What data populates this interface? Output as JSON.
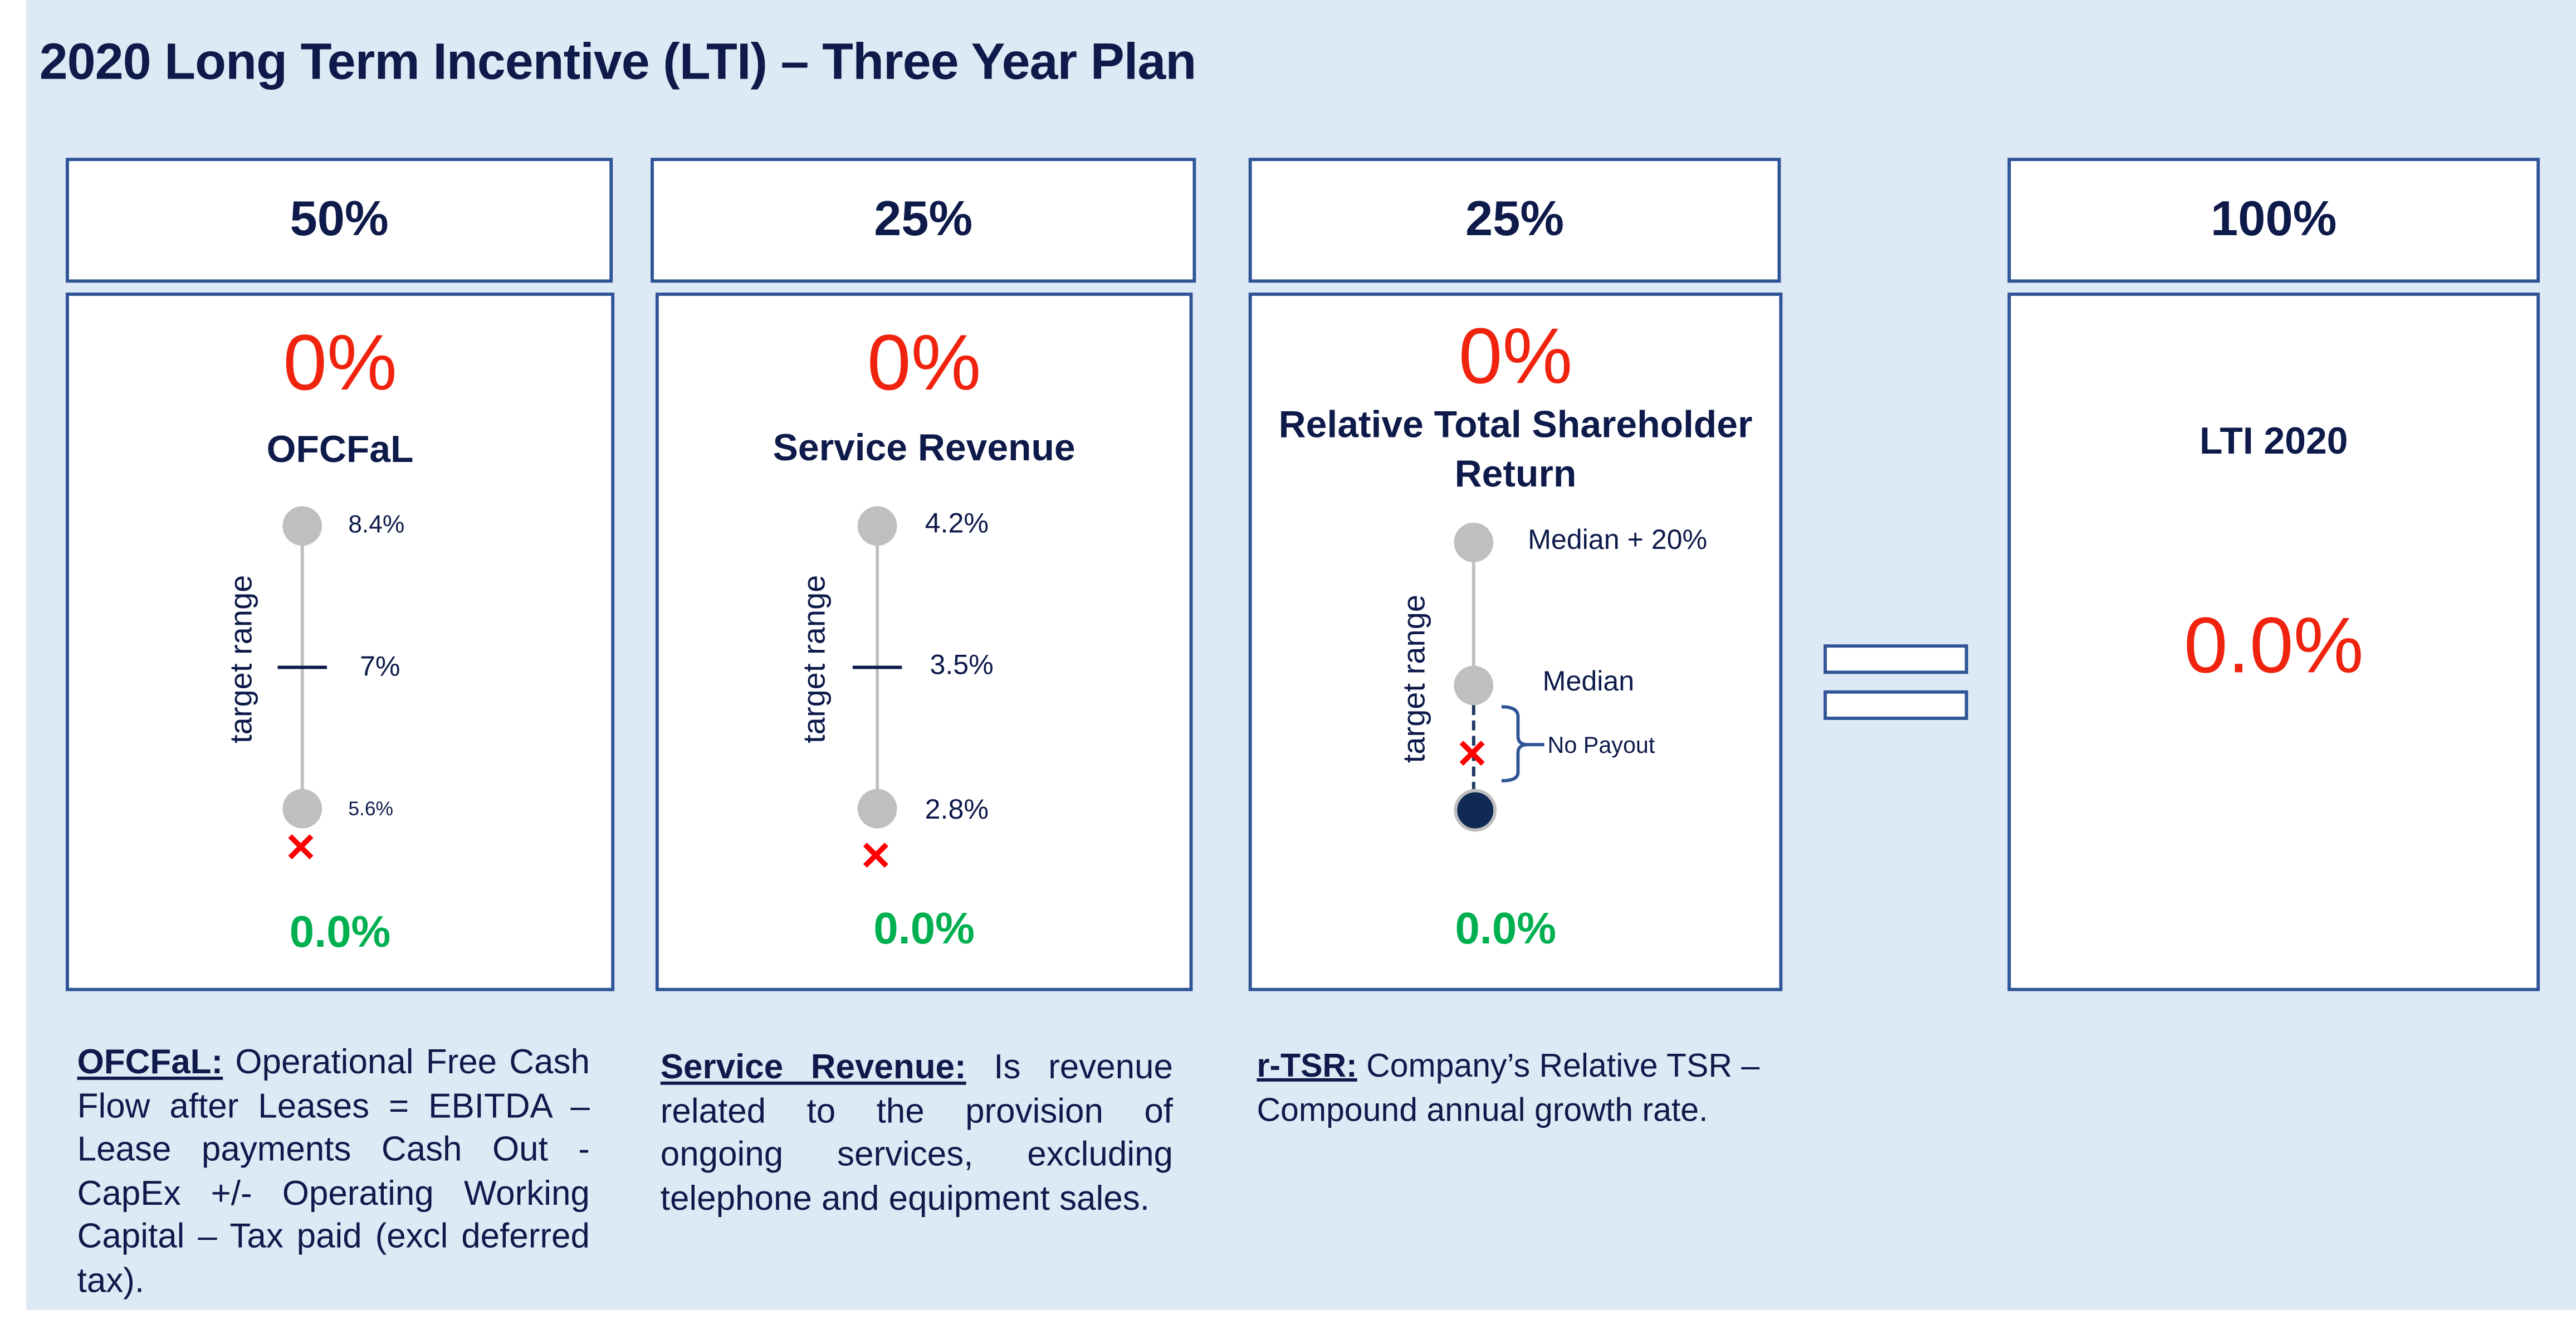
{
  "title": "2020 Long Term Incentive (LTI) – Three Year Plan",
  "colors": {
    "navy": "#0d1a4a",
    "border": "#2f5597",
    "red": "#f0230f",
    "green": "#00b050",
    "background": "#dde9f5"
  },
  "columns": [
    {
      "weight": "50%",
      "achievement": "0%",
      "label": "OFCFaL",
      "axis_label": "target range",
      "max": "8.4%",
      "mid": "7%",
      "min": "5.6%",
      "payout": "0.0%",
      "desc_term": "OFCFaL:",
      "desc_text": " Operational Free Cash Flow after Leases = EBITDA – Lease payments Cash Out - CapEx +/- Operating Working Capital – Tax paid (excl deferred tax)."
    },
    {
      "weight": "25%",
      "achievement": "0%",
      "label": "Service Revenue",
      "axis_label": "target range",
      "max": "4.2%",
      "mid": "3.5%",
      "min": "2.8%",
      "payout": "0.0%",
      "desc_term": "Service Revenue:",
      "desc_text": " Is revenue related to the provision of ongoing services, excluding telephone and equipment sales."
    },
    {
      "weight": "25%",
      "achievement": "0%",
      "label": "Relative Total Shareholder Return",
      "axis_label": "target range",
      "max": "Median + 20%",
      "mid": "Median",
      "no_payout": "No Payout",
      "payout": "0.0%",
      "desc_term": "r-TSR:",
      "desc_text": " Company’s Relative TSR – Compound annual growth rate."
    }
  ],
  "total": {
    "weight": "100%",
    "label": "LTI 2020",
    "value": "0.0%"
  },
  "icons": {
    "actual": "red-x-icon",
    "equals": "equals-icon"
  }
}
